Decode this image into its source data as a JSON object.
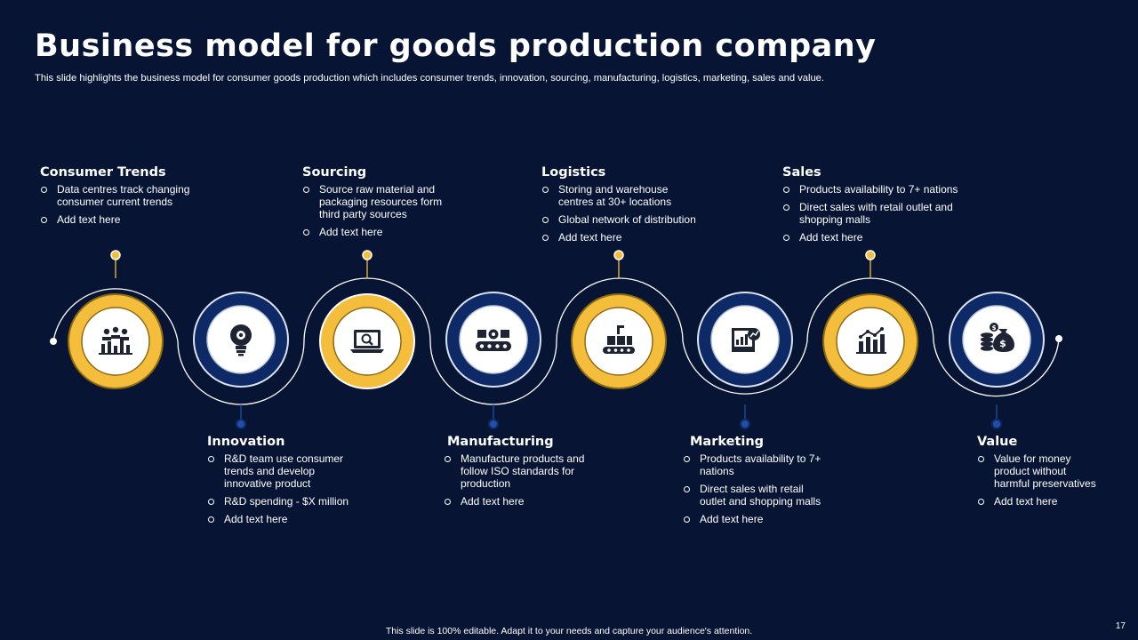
{
  "slide": {
    "title": "Business model for goods production company",
    "subtitle": "This slide highlights the business model for consumer goods production which includes consumer trends, innovation, sourcing, manufacturing, logistics, marketing, sales and value.",
    "footer": "This slide is 100% editable.  Adapt it to your needs and capture your audience's attention.",
    "page_number": "17"
  },
  "colors": {
    "background": "#071433",
    "gold": "#F4BD3B",
    "navy_ring": "#0E2A66",
    "ring_border": "#DCE3F0"
  },
  "steps": [
    {
      "name": "Consumer Trends",
      "icon": "people-chart-icon",
      "theme": "gold",
      "position": "top",
      "bullets": [
        "Data centres track changing consumer current trends",
        "Add text here"
      ]
    },
    {
      "name": "Innovation",
      "icon": "lightbulb-gear-icon",
      "theme": "navy",
      "position": "bottom",
      "bullets": [
        "R&D team use consumer trends and develop innovative product",
        "R&D spending - $X million",
        "Add text here"
      ]
    },
    {
      "name": "Sourcing",
      "icon": "laptop-search-icon",
      "theme": "gold",
      "position": "top",
      "bullets": [
        "Source raw material and packaging resources form third party sources",
        "Add text here"
      ]
    },
    {
      "name": "Manufacturing",
      "icon": "conveyor-belt-icon",
      "theme": "navy",
      "position": "bottom",
      "bullets": [
        "Manufacture products and follow ISO standards for production",
        "Add text here"
      ]
    },
    {
      "name": "Logistics",
      "icon": "warehouse-conveyor-icon",
      "theme": "gold",
      "position": "top",
      "bullets": [
        "Storing and warehouse centres at 30+ locations",
        "Global network of distribution",
        "Add text here"
      ]
    },
    {
      "name": "Marketing",
      "icon": "presentation-board-icon",
      "theme": "navy",
      "position": "bottom",
      "bullets": [
        "Products availability to 7+ nations",
        "Direct sales with retail outlet and shopping malls",
        "Add text here"
      ]
    },
    {
      "name": "Sales",
      "icon": "bar-chart-icon",
      "theme": "gold",
      "position": "top",
      "bullets": [
        "Products availability to 7+ nations",
        "Direct sales with retail outlet and shopping malls",
        "Add text here"
      ]
    },
    {
      "name": "Value",
      "icon": "money-bag-coins-icon",
      "theme": "navy",
      "position": "bottom",
      "bullets": [
        "Value for money product without harmful preservatives",
        "Add text here"
      ]
    }
  ]
}
